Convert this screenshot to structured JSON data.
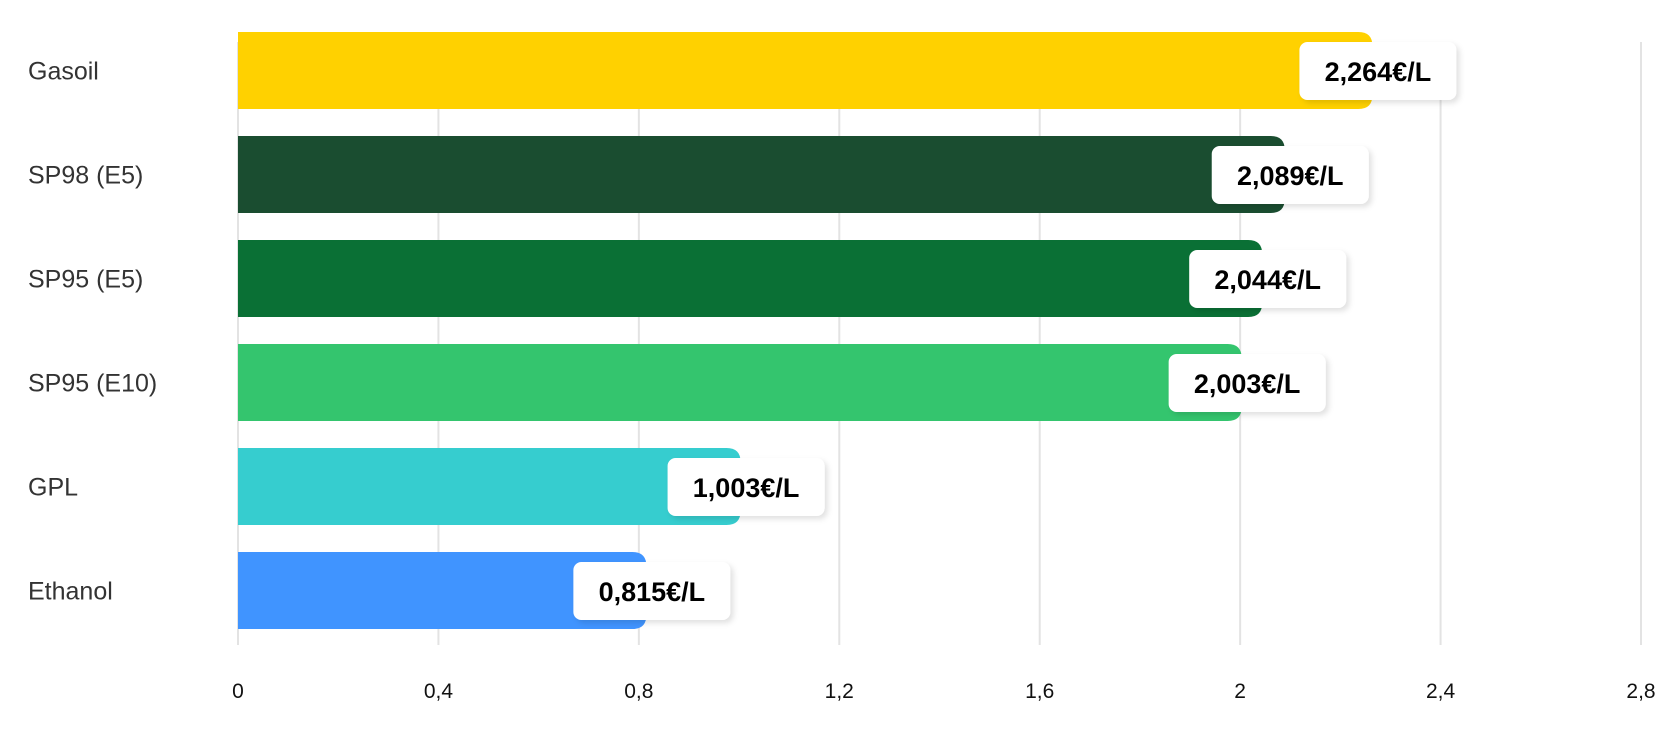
{
  "chart_data": {
    "type": "bar",
    "orientation": "horizontal",
    "title": "",
    "xlabel": "",
    "ylabel": "",
    "categories": [
      "Gasoil",
      "SP98 (E5)",
      "SP95 (E5)",
      "SP95 (E10)",
      "GPL",
      "Ethanol"
    ],
    "values": [
      2.264,
      2.089,
      2.044,
      2.003,
      1.003,
      0.815
    ],
    "value_labels": [
      "2,264€/L",
      "2,089€/L",
      "2,044€/L",
      "2,003€/L",
      "1,003€/L",
      "0,815€/L"
    ],
    "colors": [
      "#FFD100",
      "#1A4D30",
      "#0A7035",
      "#34C56E",
      "#36CDCF",
      "#4094FF"
    ],
    "xlim": [
      0,
      2.8
    ],
    "xticks": [
      0,
      0.4,
      0.8,
      1.2,
      1.6,
      2,
      2.4,
      2.8
    ],
    "xtick_labels": [
      "0",
      "0,4",
      "0,8",
      "1,2",
      "1,6",
      "2",
      "2,4",
      "2,8"
    ],
    "grid": true,
    "legend": "none"
  }
}
